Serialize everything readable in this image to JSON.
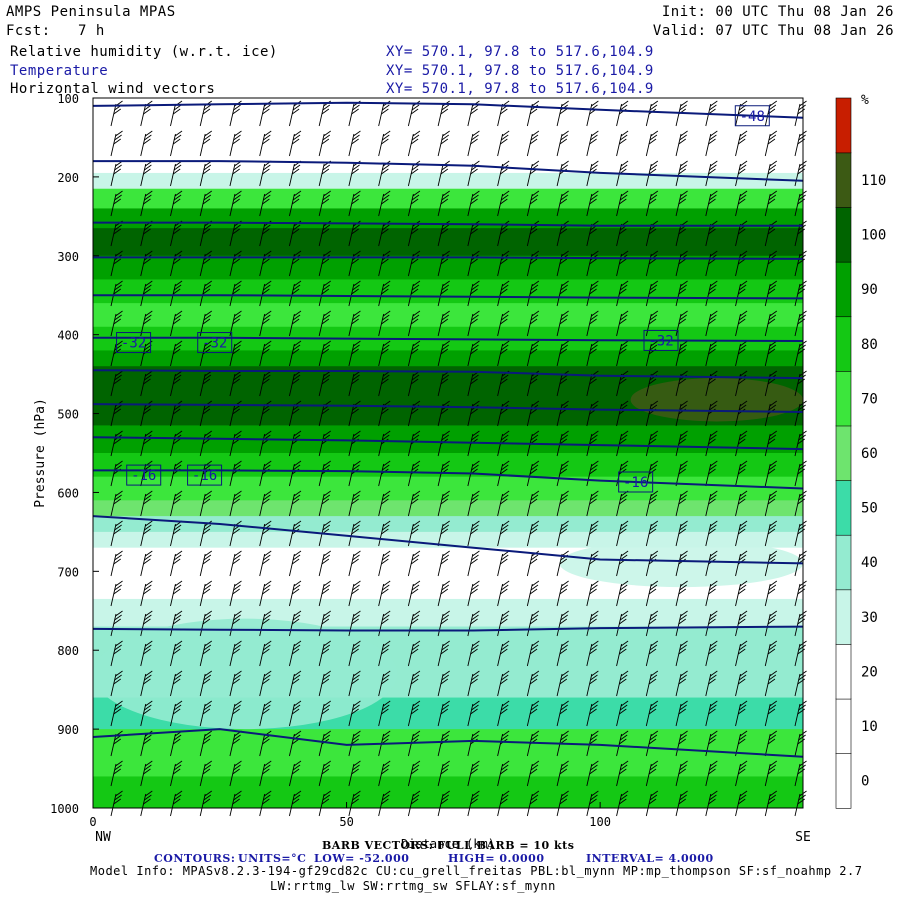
{
  "header": {
    "model": "AMPS Peninsula MPAS",
    "fcst_label": "Fcst:",
    "fcst_value": "7 h",
    "init": "Init: 00 UTC Thu 08 Jan 26",
    "valid": "Valid: 07 UTC Thu 08 Jan 26",
    "field1": "Relative humidity (w.r.t. ice)",
    "field2": "Temperature",
    "field3": "Horizontal wind vectors",
    "xy": "XY= 570.1, 97.8 to 517.6,104.9"
  },
  "footer": {
    "barb_note": "BARB VECTORS: FULL BARB = 10 kts",
    "contours_label": "CONTOURS:",
    "contours_units": "UNITS=°C",
    "contours_low": "LOW= -52.000",
    "contours_high": "HIGH= 0.0000",
    "contours_interval": "INTERVAL= 4.0000",
    "model_info": "Model Info: MPASv8.2.3-194-gf29cd82c CU:cu_grell_freitas PBL:bl_mynn MP:mp_thompson SF:sf_noahmp 2.7",
    "model_info2": "LW:rrtmg_lw SW:rrtmg_sw SFLAY:sf_mynn"
  },
  "colors": {
    "frame": "#000000",
    "contour": "#0a1a7a",
    "label_text": "#1a1aa6"
  },
  "chart_data": {
    "type": "heatmap",
    "title": "Relative humidity (w.r.t. ice)",
    "xlabel": "Distance (km)",
    "ylabel": "Pressure (hPa)",
    "x_ticks": [
      "0",
      "50",
      "100"
    ],
    "x_end_labels": {
      "left": "NW",
      "right": "SE"
    },
    "xlim": [
      0,
      140
    ],
    "y_ticks": [
      "100",
      "200",
      "300",
      "400",
      "500",
      "600",
      "700",
      "800",
      "900",
      "1000"
    ],
    "ylim": [
      1000,
      100
    ],
    "colorbar": {
      "units": "%",
      "labels": [
        "0",
        "10",
        "20",
        "30",
        "40",
        "50",
        "60",
        "70",
        "80",
        "90",
        "100",
        "110"
      ],
      "colors": [
        "#ffffff",
        "#ffffff",
        "#ffffff",
        "#c8f5e8",
        "#94ebd0",
        "#3cdca8",
        "#6ee46e",
        "#3ce63c",
        "#14c814",
        "#00a000",
        "#006400",
        "#3c5a14",
        "#c81e00"
      ]
    },
    "rh_bands": [
      {
        "p_top": 100,
        "p_bot": 175,
        "rh": 10
      },
      {
        "p_top": 175,
        "p_bot": 195,
        "rh": 25
      },
      {
        "p_top": 195,
        "p_bot": 215,
        "rh": 35
      },
      {
        "p_top": 215,
        "p_bot": 240,
        "rh": 75
      },
      {
        "p_top": 240,
        "p_bot": 265,
        "rh": 95
      },
      {
        "p_top": 265,
        "p_bot": 300,
        "rh": 105
      },
      {
        "p_top": 300,
        "p_bot": 330,
        "rh": 95
      },
      {
        "p_top": 330,
        "p_bot": 360,
        "rh": 85
      },
      {
        "p_top": 360,
        "p_bot": 390,
        "rh": 75
      },
      {
        "p_top": 390,
        "p_bot": 420,
        "rh": 85
      },
      {
        "p_top": 420,
        "p_bot": 440,
        "rh": 95
      },
      {
        "p_top": 440,
        "p_bot": 515,
        "rh": 105
      },
      {
        "p_top": 515,
        "p_bot": 550,
        "rh": 95
      },
      {
        "p_top": 550,
        "p_bot": 580,
        "rh": 85
      },
      {
        "p_top": 580,
        "p_bot": 610,
        "rh": 75
      },
      {
        "p_top": 610,
        "p_bot": 630,
        "rh": 65
      },
      {
        "p_top": 630,
        "p_bot": 650,
        "rh": 45
      },
      {
        "p_top": 650,
        "p_bot": 670,
        "rh": 35
      },
      {
        "p_top": 670,
        "p_bot": 735,
        "rh": 15
      },
      {
        "p_top": 735,
        "p_bot": 770,
        "rh": 35
      },
      {
        "p_top": 770,
        "p_bot": 860,
        "rh": 45
      },
      {
        "p_top": 860,
        "p_bot": 900,
        "rh": 55
      },
      {
        "p_top": 900,
        "p_bot": 960,
        "rh": 75
      },
      {
        "p_top": 960,
        "p_bot": 1000,
        "rh": 85
      }
    ],
    "rh_patches": [
      {
        "x0": 106,
        "x1": 140,
        "p_top": 455,
        "p_bot": 510,
        "rh": 115
      },
      {
        "x0": 92,
        "x1": 140,
        "p_top": 660,
        "p_bot": 720,
        "rh": 35
      },
      {
        "x0": 0,
        "x1": 60,
        "p_top": 760,
        "p_bot": 900,
        "rh": 45
      }
    ],
    "temperature_contours": [
      {
        "p": [
          110,
          108,
          106,
          108,
          115,
          125
        ],
        "label": "-48",
        "label_x": 130
      },
      {
        "p": [
          180,
          180,
          182,
          186,
          195,
          205
        ]
      },
      {
        "p": [
          258,
          258,
          259,
          260,
          262,
          262
        ]
      },
      {
        "p": [
          302,
          302,
          302,
          302,
          303,
          304
        ]
      },
      {
        "p": [
          350,
          350,
          351,
          352,
          353,
          354
        ]
      },
      {
        "p": [
          404,
          404,
          405,
          406,
          407,
          408
        ],
        "label": "-32",
        "label_x": 112
      },
      {
        "p": [
          445,
          446,
          446,
          447,
          452,
          455
        ]
      },
      {
        "p": [
          488,
          489,
          490,
          492,
          495,
          498
        ]
      },
      {
        "p": [
          530,
          532,
          534,
          537,
          540,
          545
        ]
      },
      {
        "p": [
          572,
          572,
          573,
          576,
          585,
          595
        ],
        "label": "-16",
        "label_x": 107
      },
      {
        "p": [
          630,
          640,
          655,
          670,
          685,
          690
        ]
      },
      {
        "p": [
          773,
          774,
          775,
          775,
          772,
          770
        ]
      },
      {
        "p": [
          910,
          900,
          920,
          915,
          920,
          935
        ]
      }
    ],
    "contour_x": [
      0,
      25,
      50,
      75,
      100,
      140
    ],
    "extra_labels": [
      {
        "label": "-32",
        "x": 8,
        "p": 410
      },
      {
        "label": "-32",
        "x": 24,
        "p": 410
      },
      {
        "label": "-16",
        "x": 10,
        "p": 578
      },
      {
        "label": "-16",
        "x": 22,
        "p": 578
      }
    ]
  }
}
